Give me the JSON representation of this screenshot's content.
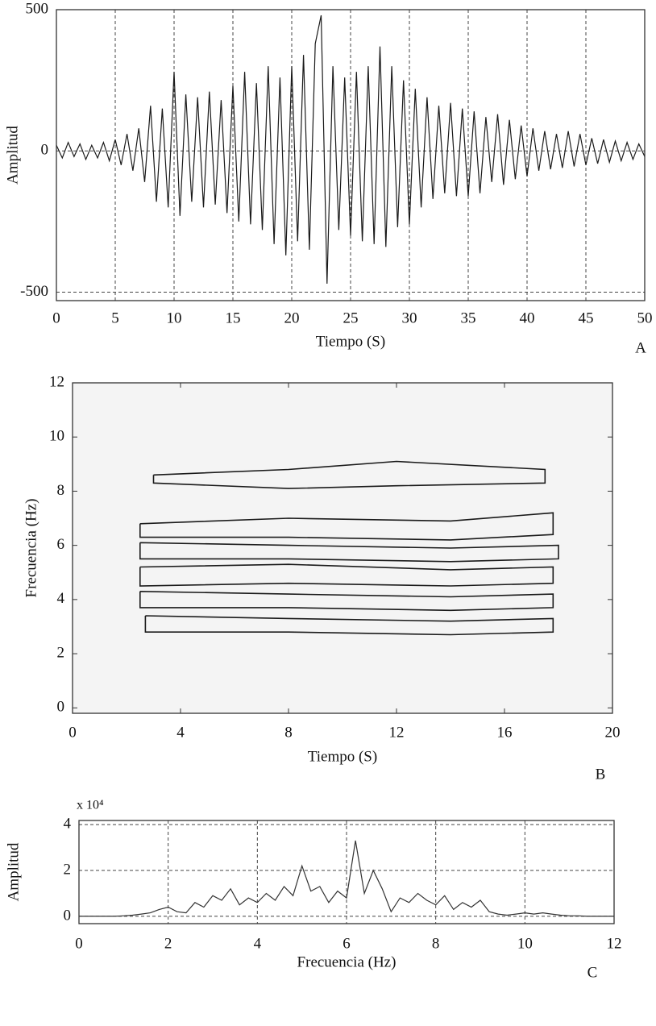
{
  "chart_data": [
    {
      "type": "line",
      "panel": "A",
      "xlabel": "Tiempo (S)",
      "ylabel": "Amplitud",
      "color": "#1a1a1a",
      "grid": true,
      "xlim": [
        0,
        50
      ],
      "ylim": [
        -530,
        500
      ],
      "xticks": [
        0,
        5,
        10,
        15,
        20,
        25,
        30,
        35,
        40,
        45,
        50
      ],
      "yticks": [
        -500,
        0,
        500
      ],
      "x": [
        0,
        0.5,
        1,
        1.5,
        2,
        2.5,
        3,
        3.5,
        4,
        4.5,
        5,
        5.5,
        6,
        6.5,
        7,
        7.5,
        8,
        8.5,
        9,
        9.5,
        10,
        10.5,
        11,
        11.5,
        12,
        12.5,
        13,
        13.5,
        14,
        14.5,
        15,
        15.5,
        16,
        16.5,
        17,
        17.5,
        18,
        18.5,
        19,
        19.5,
        20,
        20.5,
        21,
        21.5,
        22,
        22.5,
        23,
        23.5,
        24,
        24.5,
        25,
        25.5,
        26,
        26.5,
        27,
        27.5,
        28,
        28.5,
        29,
        29.5,
        30,
        30.5,
        31,
        31.5,
        32,
        32.5,
        33,
        33.5,
        34,
        34.5,
        35,
        35.5,
        36,
        36.5,
        37,
        37.5,
        38,
        38.5,
        39,
        39.5,
        40,
        40.5,
        41,
        41.5,
        42,
        42.5,
        43,
        43.5,
        44,
        44.5,
        45,
        45.5,
        46,
        46.5,
        47,
        47.5,
        48,
        48.5,
        49,
        49.5,
        50
      ],
      "values": [
        20,
        -25,
        30,
        -20,
        25,
        -30,
        20,
        -25,
        30,
        -35,
        40,
        -50,
        60,
        -70,
        80,
        -110,
        160,
        -180,
        150,
        -200,
        280,
        -230,
        200,
        -180,
        190,
        -200,
        210,
        -190,
        180,
        -220,
        230,
        -250,
        280,
        -260,
        240,
        -280,
        300,
        -330,
        260,
        -370,
        300,
        -320,
        340,
        -350,
        380,
        480,
        -470,
        300,
        -280,
        260,
        -300,
        280,
        -320,
        300,
        -330,
        370,
        -340,
        300,
        -270,
        250,
        -260,
        220,
        -200,
        190,
        -170,
        160,
        -150,
        170,
        -160,
        150,
        -160,
        140,
        -150,
        120,
        -110,
        130,
        -120,
        110,
        -100,
        90,
        -90,
        80,
        -70,
        70,
        -65,
        60,
        -60,
        70,
        -55,
        60,
        -50,
        45,
        -45,
        40,
        -40,
        35,
        -35,
        30,
        -30,
        25,
        -20
      ]
    },
    {
      "type": "contour",
      "panel": "B",
      "xlabel": "Tiempo (S)",
      "ylabel": "Frecuencia (Hz)",
      "color": "#1a1a1a",
      "xlim": [
        0,
        20
      ],
      "ylim": [
        -0.2,
        12
      ],
      "xticks": [
        0,
        4,
        8,
        12,
        16,
        20
      ],
      "yticks": [
        0,
        2,
        4,
        6,
        8,
        10,
        12
      ],
      "series": [
        {
          "x": [
            3,
            8,
            12,
            17.5,
            17.5,
            12,
            8,
            3,
            3
          ],
          "values": [
            8.6,
            8.8,
            9.1,
            8.8,
            8.3,
            8.2,
            8.1,
            8.3,
            8.6
          ]
        },
        {
          "x": [
            2.5,
            8,
            14,
            17.8,
            17.8,
            14,
            8,
            2.5,
            2.5
          ],
          "values": [
            6.8,
            7.0,
            6.9,
            7.2,
            6.4,
            6.2,
            6.3,
            6.3,
            6.8
          ]
        },
        {
          "x": [
            2.5,
            8,
            14,
            18,
            18,
            14,
            8,
            2.5,
            2.5
          ],
          "values": [
            6.1,
            6.0,
            5.9,
            6.0,
            5.5,
            5.4,
            5.5,
            5.5,
            6.1
          ]
        },
        {
          "x": [
            2.5,
            8,
            14,
            17.8,
            17.8,
            14,
            8,
            2.5,
            2.5
          ],
          "values": [
            5.2,
            5.3,
            5.1,
            5.2,
            4.6,
            4.5,
            4.6,
            4.5,
            5.2
          ]
        },
        {
          "x": [
            2.5,
            8,
            14,
            17.8,
            17.8,
            14,
            8,
            2.5,
            2.5
          ],
          "values": [
            4.3,
            4.2,
            4.1,
            4.2,
            3.7,
            3.6,
            3.7,
            3.7,
            4.3
          ]
        },
        {
          "x": [
            2.7,
            8,
            14,
            17.8,
            17.8,
            14,
            8,
            2.7,
            2.7
          ],
          "values": [
            3.4,
            3.3,
            3.2,
            3.3,
            2.8,
            2.7,
            2.8,
            2.8,
            3.4
          ]
        }
      ]
    },
    {
      "type": "line",
      "panel": "C",
      "xlabel": "Frecuencia (Hz)",
      "ylabel": "Amplitud",
      "annotation": "x 10⁴",
      "color": "#333333",
      "grid": true,
      "xlim": [
        0,
        12
      ],
      "ylim": [
        -0.32,
        4.18
      ],
      "xticks": [
        0,
        2,
        4,
        6,
        8,
        10,
        12
      ],
      "yticks": [
        0,
        2,
        4
      ],
      "x": [
        0,
        0.2,
        0.4,
        0.6,
        0.8,
        1,
        1.2,
        1.4,
        1.6,
        1.8,
        2,
        2.2,
        2.4,
        2.6,
        2.8,
        3,
        3.2,
        3.4,
        3.6,
        3.8,
        4,
        4.2,
        4.4,
        4.6,
        4.8,
        5,
        5.2,
        5.4,
        5.6,
        5.8,
        6,
        6.2,
        6.4,
        6.6,
        6.8,
        7,
        7.2,
        7.4,
        7.6,
        7.8,
        8,
        8.2,
        8.4,
        8.6,
        8.8,
        9,
        9.2,
        9.4,
        9.6,
        9.8,
        10,
        10.2,
        10.4,
        10.6,
        10.8,
        11,
        11.2,
        11.4,
        11.6,
        11.8,
        12
      ],
      "values": [
        0,
        0,
        0,
        0,
        0,
        0.02,
        0.05,
        0.1,
        0.15,
        0.3,
        0.4,
        0.2,
        0.15,
        0.6,
        0.4,
        0.9,
        0.7,
        1.2,
        0.5,
        0.8,
        0.6,
        1.0,
        0.7,
        1.3,
        0.9,
        2.2,
        1.1,
        1.3,
        0.6,
        1.1,
        0.8,
        3.3,
        1.0,
        2.0,
        1.2,
        0.2,
        0.8,
        0.6,
        1.0,
        0.7,
        0.5,
        0.9,
        0.3,
        0.6,
        0.4,
        0.7,
        0.2,
        0.1,
        0.05,
        0.1,
        0.15,
        0.1,
        0.15,
        0.1,
        0.05,
        0.02,
        0.02,
        0,
        0,
        0,
        0
      ]
    }
  ]
}
